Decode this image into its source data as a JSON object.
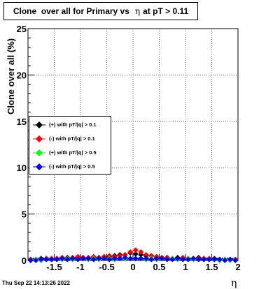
{
  "title": {
    "prefix": "Clone  over all for Primary vs",
    "eta_symbol": "η",
    "suffix": "at pT > 0.11"
  },
  "footer": {
    "timestamp": "Thu Sep 22 14:13:26 2022"
  },
  "chart_data": {
    "type": "scatter",
    "title": "Clone  over all for Primary vs η at pT > 0.11",
    "xlabel": "η",
    "ylabel": "Clone  over all (%)",
    "xlim": [
      -2,
      2
    ],
    "ylim": [
      0,
      25
    ],
    "xticks": [
      "-1.5",
      "-1",
      "-0.5",
      "0",
      "0.5",
      "1",
      "1.5",
      "2"
    ],
    "xtick_values": [
      -1.5,
      -1,
      -0.5,
      0,
      0.5,
      1,
      1.5,
      2
    ],
    "yticks": [
      "0",
      "5",
      "10",
      "15",
      "20",
      "25"
    ],
    "ytick_values": [
      0,
      5,
      10,
      15,
      20,
      25
    ],
    "grid": true,
    "legend_position": "middle-left",
    "series": [
      {
        "name": "(+) with pT/|q| > 0.1",
        "color": "#000000",
        "x": [
          -2.0,
          -1.9,
          -1.8,
          -1.7,
          -1.6,
          -1.5,
          -1.4,
          -1.3,
          -1.2,
          -1.1,
          -1.0,
          -0.9,
          -0.8,
          -0.7,
          -0.6,
          -0.5,
          -0.4,
          -0.3,
          -0.2,
          -0.1,
          0.0,
          0.1,
          0.2,
          0.3,
          0.4,
          0.5,
          0.6,
          0.7,
          0.8,
          0.9,
          1.0,
          1.1,
          1.2,
          1.3,
          1.4,
          1.5,
          1.6,
          1.7,
          1.8,
          1.9
        ],
        "values": [
          0.1,
          0.1,
          0.2,
          0.2,
          0.1,
          0.2,
          0.2,
          0.3,
          0.2,
          0.3,
          0.3,
          0.2,
          0.3,
          0.3,
          0.4,
          0.4,
          0.5,
          0.6,
          0.6,
          0.8,
          0.7,
          0.6,
          0.5,
          0.5,
          0.4,
          0.3,
          0.3,
          0.2,
          0.3,
          0.2,
          0.2,
          0.2,
          0.3,
          0.2,
          0.1,
          0.2,
          0.1,
          0.1,
          0.1,
          0.1
        ]
      },
      {
        "name": "(-) with pT/|q| > 0.1",
        "color": "#ff0000",
        "x": [
          -2.0,
          -1.9,
          -1.8,
          -1.7,
          -1.6,
          -1.5,
          -1.4,
          -1.3,
          -1.2,
          -1.1,
          -1.0,
          -0.9,
          -0.8,
          -0.7,
          -0.6,
          -0.5,
          -0.4,
          -0.3,
          -0.2,
          -0.1,
          0.0,
          0.1,
          0.2,
          0.3,
          0.4,
          0.5,
          0.6,
          0.7,
          0.8,
          0.9,
          1.0,
          1.1,
          1.2,
          1.3,
          1.4,
          1.5,
          1.6,
          1.7,
          1.8,
          1.9
        ],
        "values": [
          0.1,
          0.1,
          0.1,
          0.2,
          0.2,
          0.2,
          0.3,
          0.2,
          0.3,
          0.4,
          0.3,
          0.3,
          0.4,
          0.3,
          0.4,
          0.5,
          0.4,
          0.5,
          0.6,
          0.9,
          1.1,
          0.9,
          0.6,
          0.5,
          0.4,
          0.3,
          0.3,
          0.2,
          0.2,
          0.3,
          0.2,
          0.2,
          0.2,
          0.2,
          0.2,
          0.1,
          0.1,
          0.1,
          0.1,
          0.1
        ]
      },
      {
        "name": "(+) with pT/|q| > 0.5",
        "color": "#00ff00",
        "x": [
          -2.0,
          -1.9,
          -1.8,
          -1.7,
          -1.6,
          -1.5,
          -1.4,
          -1.3,
          -1.2,
          -1.1,
          -1.0,
          -0.9,
          -0.8,
          -0.7,
          -0.6,
          -0.5,
          -0.4,
          -0.3,
          -0.2,
          -0.1,
          0.0,
          0.1,
          0.2,
          0.3,
          0.4,
          0.5,
          0.6,
          0.7,
          0.8,
          0.9,
          1.0,
          1.1,
          1.2,
          1.3,
          1.4,
          1.5,
          1.6,
          1.7,
          1.8,
          1.9
        ],
        "values": [
          0.0,
          0.1,
          0.0,
          0.1,
          0.1,
          0.1,
          0.1,
          0.2,
          0.1,
          0.1,
          0.2,
          0.1,
          0.2,
          0.1,
          0.2,
          0.2,
          0.1,
          0.2,
          0.2,
          0.2,
          0.2,
          0.2,
          0.1,
          0.2,
          0.1,
          0.2,
          0.1,
          0.2,
          0.1,
          0.1,
          0.2,
          0.1,
          0.1,
          0.1,
          0.1,
          0.1,
          0.0,
          0.1,
          0.0,
          0.0
        ]
      },
      {
        "name": "(-) with pT/|q| > 0.5",
        "color": "#0000ff",
        "x": [
          -2.0,
          -1.9,
          -1.8,
          -1.7,
          -1.6,
          -1.5,
          -1.4,
          -1.3,
          -1.2,
          -1.1,
          -1.0,
          -0.9,
          -0.8,
          -0.7,
          -0.6,
          -0.5,
          -0.4,
          -0.3,
          -0.2,
          -0.1,
          0.0,
          0.1,
          0.2,
          0.3,
          0.4,
          0.5,
          0.6,
          0.7,
          0.8,
          0.9,
          1.0,
          1.1,
          1.2,
          1.3,
          1.4,
          1.5,
          1.6,
          1.7,
          1.8,
          1.9
        ],
        "values": [
          0.0,
          0.0,
          0.1,
          0.1,
          0.1,
          0.1,
          0.2,
          0.1,
          0.2,
          0.1,
          0.2,
          0.2,
          0.1,
          0.2,
          0.2,
          0.1,
          0.2,
          0.2,
          0.3,
          0.2,
          0.2,
          0.2,
          0.2,
          0.1,
          0.2,
          0.2,
          0.1,
          0.1,
          0.2,
          0.1,
          0.1,
          0.2,
          0.1,
          0.1,
          0.1,
          0.1,
          0.1,
          0.0,
          0.1,
          0.0
        ]
      }
    ]
  }
}
